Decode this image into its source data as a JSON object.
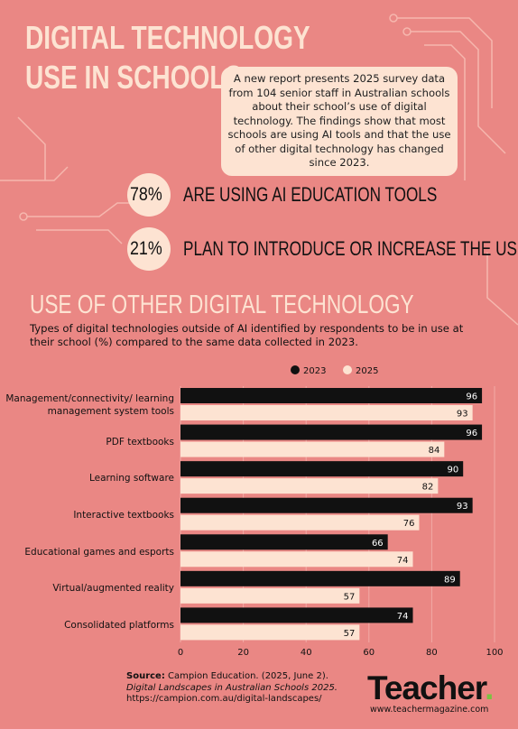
{
  "header": {
    "title_lines": [
      "DIGITAL TECHNOLOGY",
      "USE IN SCHOOLS"
    ],
    "intro": "A new report presents 2025 survey data from 104 senior staff in Australian schools about their school’s use of digital technology. The findings show that most schools are using AI tools and that the use of other digital technology has changed since 2023."
  },
  "stats": [
    {
      "figure": "78%",
      "text": "ARE USING AI EDUCATION TOOLS"
    },
    {
      "figure": "21%",
      "text": "PLAN TO INTRODUCE OR INCREASE THE USE OF AI"
    }
  ],
  "chart_data": {
    "type": "hbar",
    "title": "USE OF OTHER DIGITAL TECHNOLOGY",
    "subtitle": "Types of digital technologies outside of AI identified by respondents to be in use at their school (%) compared to the same data collected in 2023.",
    "categories": [
      "Management/connectivity/ learning management system tools",
      "PDF textbooks",
      "Learning software",
      "Interactive textbooks",
      "Educational games and esports",
      "Virtual/augmented reality",
      "Consolidated platforms"
    ],
    "series": [
      {
        "name": "2023",
        "color": "#111111",
        "values": [
          96,
          96,
          90,
          93,
          66,
          89,
          74
        ]
      },
      {
        "name": "2025",
        "color": "#fde3d2",
        "values": [
          93,
          84,
          82,
          76,
          74,
          57,
          57
        ]
      }
    ],
    "xlim": [
      0,
      100
    ],
    "xticks": [
      0,
      20,
      40,
      60,
      80,
      100
    ],
    "grid": true
  },
  "source": {
    "label": "Source:",
    "text": "Campion Education. (2025, June 2).",
    "work": "Digital Landscapes in Australian Schools 2025.",
    "url": "https://campion.com.au/digital-landscapes/"
  },
  "brand": {
    "name": "Teacher",
    "url": "www.teachermagazine.com"
  }
}
